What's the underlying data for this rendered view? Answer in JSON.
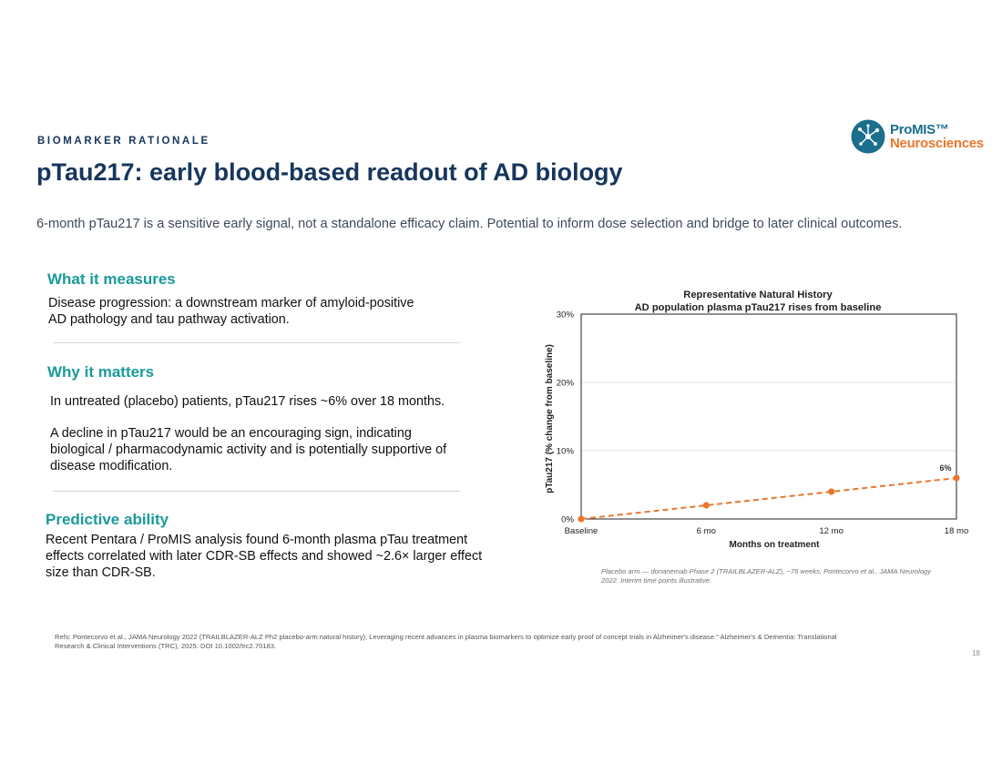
{
  "header": {
    "eyebrow": "BIOMARKER RATIONALE",
    "title": "pTau217: early blood-based readout of AD biology",
    "subtitle": "6-month pTau217 is a sensitive early signal, not a standalone efficacy claim.  Potential to inform dose selection and bridge to later clinical outcomes."
  },
  "logo": {
    "line1": "ProMIS™",
    "line2": "Neurosciences",
    "icon": "molecule-network-icon",
    "brand_blue": "#1b6e8c",
    "brand_orange": "#e8772e"
  },
  "sections": {
    "measures": {
      "heading": "What it measures",
      "line1": "Disease progression: a downstream marker of amyloid-positive",
      "line2": "AD pathology and tau pathway activation."
    },
    "matters": {
      "heading": "Why it matters",
      "para1": "In untreated (placebo) patients, pTau217 rises ~6% over 18 months.",
      "para2_line1": "A decline in pTau217 would be an encouraging sign, indicating",
      "para2_line2": "biological / pharmacodynamic activity and is potentially supportive of",
      "para2_line3": "disease modification."
    },
    "predictive": {
      "heading": "Predictive ability",
      "line1": "Recent Pentara / ProMIS analysis found 6-month plasma pTau treatment",
      "line2": "effects correlated with later CDR-SB effects and showed ~2.6× larger effect",
      "line3": "size than CDR-SB."
    }
  },
  "chart_data": {
    "type": "line",
    "title": "Representative Natural History",
    "subtitle": "AD population plasma pTau217 rises from baseline",
    "xlabel": "Months on treatment",
    "ylabel": "pTau217 (% change from baseline)",
    "categories": [
      "Baseline",
      "6 mo",
      "12 mo",
      "18 mo"
    ],
    "series": [
      {
        "values": [
          0,
          2,
          4,
          6
        ],
        "color": "#e8772e",
        "style": "dashed"
      }
    ],
    "ylim": [
      0,
      30
    ],
    "yticks": [
      "0%",
      "10%",
      "20%",
      "30%"
    ],
    "data_labels": [
      {
        "index": 3,
        "text": "6%"
      }
    ],
    "grid": true
  },
  "chart_note": {
    "line1": "Placebo arm — donanemab Phase 2 (TRAILBLAZER-ALZ), ~76 weeks; Pontecorvo et al., JAMA Neurology",
    "line2": "2022. Interim time points illustrative."
  },
  "refs": {
    "line1": "Refs: Pontecorvo et al., JAMA Neurology 2022 (TRAILBLAZER-ALZ Ph2 placebo-arm natural history); Leveraging recent advances in plasma biomarkers to optimize early proof of concept trials in Alzheimer's disease.\" Alzheimer's & Dementia: Translational",
    "line2": "Research & Clinical Interventions (TRC), 2025. DOI 10.1002/trc2.70183."
  },
  "page_number": "18"
}
